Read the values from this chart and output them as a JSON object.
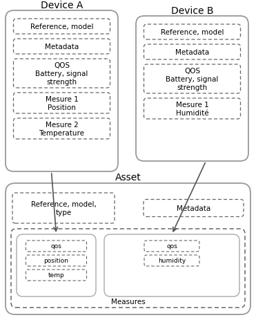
{
  "title_device_a": "Device A",
  "title_device_b": "Device B",
  "title_asset": "Asset",
  "device_a_items": [
    "Reference, model",
    "Metadata",
    "QOS\nBattery, signal\nstrength",
    "Mesure 1\nPosition",
    "Mesure 2\nTemperature"
  ],
  "device_b_items": [
    "Reference, model",
    "Metadata",
    "QOS\nBattery, signal\nstrength",
    "Mesure 1\nHumidité"
  ],
  "asset_top_left": "Reference, model,\ntype",
  "asset_top_right": "Metadata",
  "asset_measure_a_items": [
    "qos",
    "position",
    "temp"
  ],
  "asset_measure_b_items": [
    "qos",
    "humidity"
  ],
  "measures_label": "Measures",
  "bg_color": "#ffffff",
  "outer_lw": 1.3,
  "inner_lw": 0.9,
  "outer_color": "#999999",
  "inner_color": "#666666",
  "sub_box_color": "#aaaaaa",
  "font_title": 10,
  "font_item": 7.5,
  "font_small": 6.5
}
